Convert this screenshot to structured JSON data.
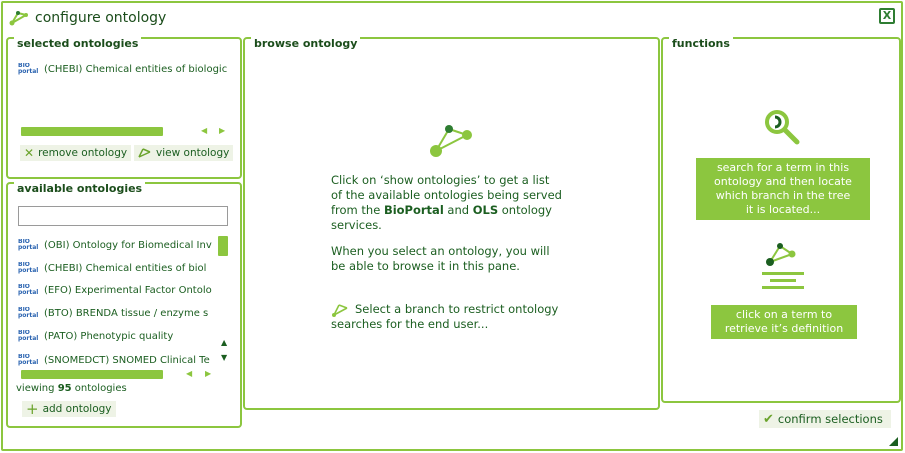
{
  "window": {
    "title": "configure ontology",
    "close_label": "X"
  },
  "selected": {
    "title": "selected ontologies",
    "items": [
      {
        "label": "(CHEBI) Chemical entities of biologic"
      }
    ],
    "remove_label": "remove ontology",
    "view_label": "view ontology"
  },
  "available": {
    "title": "available ontologies",
    "search": {
      "value": "",
      "placeholder": ""
    },
    "items": [
      {
        "label": "(OBI) Ontology for Biomedical Inv"
      },
      {
        "label": "(CHEBI) Chemical entities of biol"
      },
      {
        "label": "(EFO) Experimental Factor Ontolo"
      },
      {
        "label": "(BTO) BRENDA tissue / enzyme s"
      },
      {
        "label": "(PATO) Phenotypic quality"
      },
      {
        "label": "(SNOMEDCT) SNOMED Clinical Te"
      }
    ],
    "viewing_prefix": "viewing",
    "viewing_count": "95",
    "viewing_suffix": "ontologies",
    "add_label": "add ontology"
  },
  "browse": {
    "title": "browse ontology",
    "p1_a": "Click on ‘show ontologies’ to get a list",
    "p1_b": "of the available ontologies being served",
    "p1_c_pre": "from the",
    "p1_c_bio": "BioPortal",
    "p1_c_and": "and",
    "p1_c_ols": "OLS",
    "p1_c_post": "ontology",
    "p1_d": "services.",
    "p2_a": "When you select an ontology, you will",
    "p2_b": "be able to browse it in this pane.",
    "p3_a": "Select a branch to restrict ontology",
    "p3_b": "searches for the end user..."
  },
  "functions": {
    "title": "functions",
    "search_callout": [
      "search for a term in this",
      "ontology and then locate",
      "which branch in the tree",
      "it is located..."
    ],
    "define_callout": [
      "click on a term to",
      "retrieve it’s definition"
    ]
  },
  "confirm_label": "confirm selections",
  "icons": {
    "ontology": "ontology-graph-icon",
    "bioportal": "bioportal-logo",
    "remove": "cross-icon",
    "view": "ontology-view-icon",
    "add": "plus-icon",
    "search": "magnifier-icon",
    "confirm": "checkmark-icon"
  },
  "colors": {
    "accent": "#8cc63f",
    "text": "#1b5e20"
  }
}
